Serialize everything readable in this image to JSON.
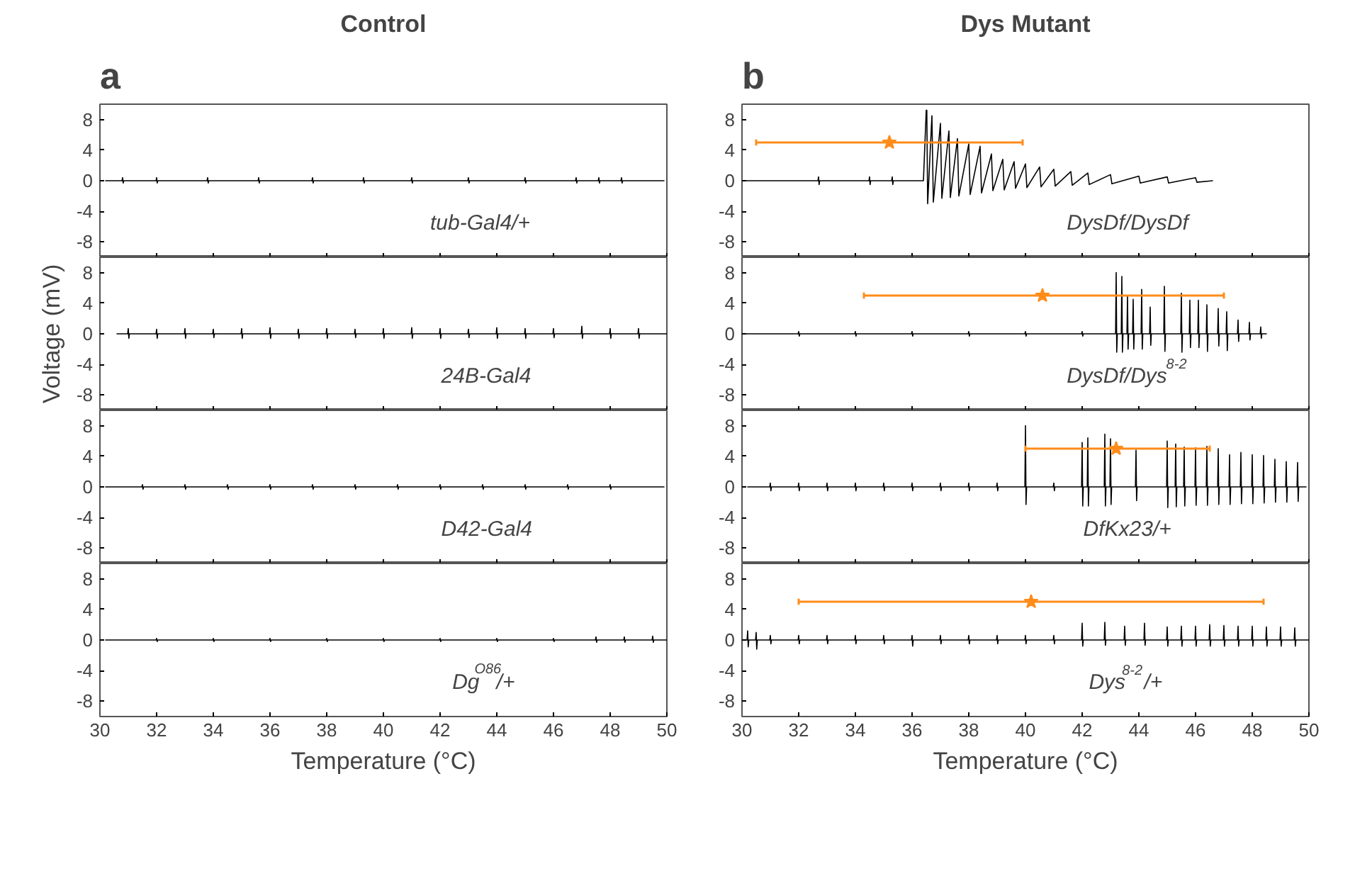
{
  "chart_data": [
    {
      "type": "line",
      "title": "Control",
      "annotations": [
        "a",
        "tub-Gal4/+"
      ],
      "xlim": [
        30,
        50
      ],
      "ylim": [
        -10,
        10
      ],
      "xticks": [
        30,
        32,
        34,
        36,
        38,
        40,
        42,
        44,
        46,
        48,
        50
      ],
      "yticks": [
        -8,
        -4,
        0,
        4,
        8
      ],
      "tick_labels": "y",
      "series": [
        {
          "color": "#000000",
          "x": [
            30.2,
            30.78,
            30.8,
            30.82,
            30.84,
            31.98,
            32,
            32.02,
            32.04,
            33.78,
            33.8,
            33.82,
            33.84,
            35.58,
            35.6,
            35.62,
            35.64,
            37.48,
            37.5,
            37.52,
            37.54,
            39.28,
            39.3,
            39.32,
            39.34,
            40.98,
            41,
            41.02,
            41.04,
            42.98,
            43,
            43.02,
            43.04,
            44.98,
            45,
            45.02,
            45.04,
            46.78,
            46.8,
            46.82,
            46.84,
            47.58,
            47.6,
            47.62,
            47.64,
            48.38,
            48.4,
            48.42,
            48.44,
            49.9
          ],
          "values": [
            0,
            0,
            0.4,
            -0.3,
            0,
            0,
            0.4,
            -0.3,
            0,
            0,
            0.4,
            -0.3,
            0,
            0,
            0.4,
            -0.3,
            0,
            0,
            0.4,
            -0.3,
            0,
            0,
            0.4,
            -0.3,
            0,
            0,
            0.4,
            -0.3,
            0,
            0,
            0.4,
            -0.3,
            0,
            0,
            0.4,
            -0.3,
            0,
            0,
            0.4,
            -0.3,
            0,
            0,
            0.4,
            -0.3,
            0,
            0,
            0.4,
            -0.3,
            0,
            0
          ]
        }
      ]
    },
    {
      "type": "line",
      "ylabel": "Voltage (mV)",
      "annotations": [
        "24B-Gal4"
      ],
      "xlim": [
        30,
        50
      ],
      "ylim": [
        -10,
        10
      ],
      "xticks": [
        30,
        32,
        34,
        36,
        38,
        40,
        42,
        44,
        46,
        48,
        50
      ],
      "yticks": [
        -8,
        -4,
        0,
        4,
        8
      ],
      "tick_labels": "y",
      "series": [
        {
          "color": "#000000",
          "x": [
            30.6,
            30.98,
            31,
            31.02,
            31.04,
            31.98,
            32,
            32.02,
            32.04,
            32.98,
            33,
            33.02,
            33.04,
            33.98,
            34,
            34.02,
            34.04,
            34.98,
            35,
            35.02,
            35.04,
            35.98,
            36,
            36.02,
            36.04,
            36.98,
            37,
            37.02,
            37.04,
            37.98,
            38,
            38.02,
            38.04,
            38.98,
            39,
            39.02,
            39.04,
            39.98,
            40,
            40.02,
            40.04,
            40.98,
            41,
            41.02,
            41.04,
            41.98,
            42,
            42.02,
            42.04,
            42.98,
            43,
            43.02,
            43.04,
            43.98,
            44,
            44.02,
            44.04,
            44.98,
            45,
            45.02,
            45.04,
            45.98,
            46,
            46.02,
            46.04,
            46.98,
            47,
            47.02,
            47.04,
            47.98,
            48,
            48.02,
            48.04,
            48.98,
            49,
            49.02,
            49.04,
            50
          ],
          "values": [
            0,
            0,
            0.7,
            -0.6,
            0,
            0,
            0.6,
            -0.6,
            0,
            0,
            0.7,
            -0.6,
            0,
            0,
            0.6,
            -0.5,
            0,
            0,
            0.7,
            -0.6,
            0,
            0,
            0.8,
            -0.6,
            0,
            0,
            0.6,
            -0.6,
            0,
            0,
            0.7,
            -0.6,
            0,
            0,
            0.6,
            -0.5,
            0,
            0,
            0.7,
            -0.6,
            0,
            0,
            0.8,
            -0.6,
            0,
            0,
            0.7,
            -0.6,
            0,
            0,
            0.6,
            -0.5,
            0,
            0,
            0.8,
            -0.6,
            0,
            0,
            0.7,
            -0.6,
            0,
            0,
            0.7,
            -0.5,
            0,
            0,
            1,
            -0.6,
            0,
            0,
            0.7,
            -0.6,
            0,
            0,
            0.7,
            -0.6,
            0,
            0
          ]
        }
      ]
    },
    {
      "type": "line",
      "annotations": [
        "D42-Gal4"
      ],
      "xlim": [
        30,
        50
      ],
      "ylim": [
        -10,
        10
      ],
      "xticks": [
        30,
        32,
        34,
        36,
        38,
        40,
        42,
        44,
        46,
        48,
        50
      ],
      "yticks": [
        -8,
        -4,
        0,
        4,
        8
      ],
      "tick_labels": "y",
      "series": [
        {
          "color": "#000000",
          "x": [
            30.2,
            31.48,
            31.5,
            31.52,
            31.54,
            32.98,
            33,
            33.02,
            33.04,
            34.48,
            34.5,
            34.52,
            34.54,
            35.98,
            36,
            36.02,
            36.04,
            37.48,
            37.5,
            37.52,
            37.54,
            38.98,
            39,
            39.02,
            39.04,
            40.48,
            40.5,
            40.52,
            40.54,
            41.98,
            42,
            42.02,
            42.04,
            43.48,
            43.5,
            43.52,
            43.54,
            44.98,
            45,
            45.02,
            45.04,
            46.48,
            46.5,
            46.52,
            46.54,
            47.98,
            48,
            48.02,
            48.04,
            49.9
          ],
          "values": [
            0,
            0,
            0.3,
            -0.3,
            0,
            0,
            0.3,
            -0.3,
            0,
            0,
            0.3,
            -0.3,
            0,
            0,
            0.3,
            -0.3,
            0,
            0,
            0.3,
            -0.3,
            0,
            0,
            0.3,
            -0.3,
            0,
            0,
            0.3,
            -0.3,
            0,
            0,
            0.3,
            -0.3,
            0,
            0,
            0.3,
            -0.3,
            0,
            0,
            0.3,
            -0.3,
            0,
            0,
            0.3,
            -0.3,
            0,
            0,
            0.3,
            -0.3,
            0,
            0
          ]
        }
      ]
    },
    {
      "type": "line",
      "xlabel": "Temperature (°C)",
      "annotations": [
        "Dg$^{O86}$/+"
      ],
      "xlim": [
        30,
        50
      ],
      "ylim": [
        -10,
        10
      ],
      "xticks": [
        30,
        32,
        34,
        36,
        38,
        40,
        42,
        44,
        46,
        48,
        50
      ],
      "yticks": [
        -8,
        -4,
        0,
        4,
        8
      ],
      "series": [
        {
          "color": "#000000",
          "x": [
            30.2,
            31.98,
            32,
            32.02,
            32.04,
            33.98,
            34,
            34.02,
            34.04,
            35.98,
            36,
            36.02,
            36.04,
            37.98,
            38,
            38.02,
            38.04,
            39.98,
            40,
            40.02,
            40.04,
            41.98,
            42,
            42.02,
            42.04,
            43.98,
            44,
            44.02,
            44.04,
            45.98,
            46,
            46.02,
            46.04,
            47.48,
            47.5,
            47.52,
            47.54,
            48.48,
            48.5,
            48.52,
            48.54,
            49.48,
            49.5,
            49.52,
            49.54,
            50
          ],
          "values": [
            0,
            0,
            0.2,
            -0.2,
            0,
            0,
            0.2,
            -0.2,
            0,
            0,
            0.2,
            -0.2,
            0,
            0,
            0.2,
            -0.2,
            0,
            0,
            0.2,
            -0.2,
            0,
            0,
            0.2,
            -0.2,
            0,
            0,
            0.2,
            -0.2,
            0,
            0,
            0.2,
            -0.2,
            0,
            0,
            0.4,
            -0.3,
            0,
            0,
            0.4,
            -0.3,
            0,
            0,
            0.5,
            -0.3,
            0,
            0
          ]
        }
      ]
    },
    {
      "type": "line",
      "title": "Dys Mutant",
      "annotations": [
        "b",
        "DysDf/DysDf"
      ],
      "xlim": [
        30,
        50
      ],
      "ylim": [
        -10,
        10
      ],
      "xticks": [
        30,
        32,
        34,
        36,
        38,
        40,
        42,
        44,
        46,
        48,
        50
      ],
      "yticks": [
        -8,
        -4,
        0,
        4,
        8
      ],
      "tick_labels": "y",
      "series": [
        {
          "color": "#000000",
          "x": [
            30,
            32.68,
            32.7,
            32.72,
            32.74,
            34.48,
            34.5,
            34.52,
            34.54,
            35.28,
            35.3,
            35.32,
            35.34,
            36.4,
            36.5,
            36.52,
            36.55,
            36.7,
            36.75,
            37,
            37.05,
            37.3,
            37.35,
            37.6,
            37.65,
            38,
            38.05,
            38.4,
            38.45,
            38.8,
            38.85,
            39.2,
            39.25,
            39.6,
            39.65,
            40,
            40.05,
            40.5,
            40.55,
            41,
            41.05,
            41.6,
            41.65,
            42.2,
            42.25,
            43,
            43.05,
            44,
            44.05,
            45,
            45.05,
            46,
            46.05,
            46.6
          ],
          "values": [
            0,
            0,
            0.5,
            -0.5,
            0,
            0,
            0.5,
            -0.5,
            0,
            0,
            0.5,
            -0.5,
            0,
            0,
            9.2,
            9.2,
            -3,
            8.5,
            -2.8,
            7.5,
            -2.3,
            6.5,
            -2.2,
            5.5,
            -2,
            4.8,
            -1.8,
            4.5,
            -1.6,
            3.5,
            -1.3,
            2.8,
            -1.2,
            2.5,
            -1,
            2.2,
            -0.9,
            1.8,
            -0.8,
            1.5,
            -0.7,
            1.2,
            -0.6,
            1,
            -0.5,
            0.8,
            -0.4,
            0.6,
            -0.3,
            0.5,
            -0.3,
            0.4,
            -0.2,
            0
          ]
        },
        {
          "type": "scatter",
          "marker": "star",
          "color": "#ff8c1a",
          "x": [
            35.2
          ],
          "values": [
            5
          ],
          "xerrors": [
            [
              30.5,
              39.9
            ]
          ]
        }
      ]
    },
    {
      "type": "line",
      "annotations": [
        "DysDf/Dys$^{8-2}$"
      ],
      "xlim": [
        30,
        50
      ],
      "ylim": [
        -10,
        10
      ],
      "xticks": [
        30,
        32,
        34,
        36,
        38,
        40,
        42,
        44,
        46,
        48,
        50
      ],
      "yticks": [
        -8,
        -4,
        0,
        4,
        8
      ],
      "tick_labels": "y",
      "series": [
        {
          "color": "#000000",
          "x": [
            30,
            31.98,
            32,
            32.02,
            32.04,
            33.98,
            34,
            34.02,
            34.04,
            35.98,
            36,
            36.02,
            36.04,
            37.98,
            38,
            38.02,
            38.04,
            39.98,
            40,
            40.02,
            40.04,
            41.98,
            42,
            42.02,
            42.04,
            43.18,
            43.2,
            43.22,
            43.24,
            43.38,
            43.4,
            43.42,
            43.44,
            43.58,
            43.6,
            43.62,
            43.64,
            43.78,
            43.8,
            43.82,
            43.84,
            44.08,
            44.1,
            44.12,
            44.14,
            44.38,
            44.4,
            44.42,
            44.44,
            44.88,
            44.9,
            44.92,
            44.94,
            45.48,
            45.5,
            45.52,
            45.54,
            45.78,
            45.8,
            45.82,
            45.84,
            46.08,
            46.1,
            46.12,
            46.14,
            46.38,
            46.4,
            46.42,
            46.44,
            46.78,
            46.8,
            46.82,
            46.84,
            47.08,
            47.1,
            47.12,
            47.14,
            47.48,
            47.5,
            47.52,
            47.54,
            47.88,
            47.9,
            47.92,
            47.94,
            48.28,
            48.3,
            48.32,
            48.34,
            48.5
          ],
          "values": [
            0,
            0,
            0.3,
            -0.3,
            0,
            0,
            0.3,
            -0.3,
            0,
            0,
            0.3,
            -0.3,
            0,
            0,
            0.3,
            -0.3,
            0,
            0,
            0.3,
            -0.3,
            0,
            0,
            0.3,
            -0.3,
            0,
            0,
            8,
            -2.4,
            0,
            0,
            7.5,
            -2.4,
            0,
            0,
            5,
            -2,
            0,
            0,
            4.5,
            -2,
            0,
            0,
            5.8,
            -2,
            0,
            0,
            3.5,
            -1.5,
            0,
            0,
            6.2,
            -2.3,
            0,
            0,
            5.3,
            -2.4,
            0,
            0,
            4.4,
            -1.8,
            0,
            0,
            4.4,
            -1.8,
            0,
            0,
            3.8,
            -2.3,
            0,
            0,
            3.3,
            -1.6,
            0,
            0,
            2.9,
            -2.2,
            0,
            0,
            1.8,
            -1,
            0,
            0,
            1.5,
            -0.8,
            0,
            0,
            0.9,
            -0.6,
            0,
            0
          ]
        },
        {
          "type": "scatter",
          "marker": "star",
          "color": "#ff8c1a",
          "x": [
            40.6
          ],
          "values": [
            5
          ],
          "xerrors": [
            [
              34.3,
              47
            ]
          ]
        }
      ]
    },
    {
      "type": "line",
      "annotations": [
        "DfKx23/+"
      ],
      "xlim": [
        30,
        50
      ],
      "ylim": [
        -10,
        10
      ],
      "xticks": [
        30,
        32,
        34,
        36,
        38,
        40,
        42,
        44,
        46,
        48,
        50
      ],
      "yticks": [
        -8,
        -4,
        0,
        4,
        8
      ],
      "tick_labels": "y",
      "series": [
        {
          "color": "#000000",
          "x": [
            30.2,
            30.98,
            31,
            31.02,
            31.04,
            31.98,
            32,
            32.02,
            32.04,
            32.98,
            33,
            33.02,
            33.04,
            33.98,
            34,
            34.02,
            34.04,
            34.98,
            35,
            35.02,
            35.04,
            35.98,
            36,
            36.02,
            36.04,
            36.98,
            37,
            37.02,
            37.04,
            37.98,
            38,
            38.02,
            38.04,
            38.98,
            39,
            39.02,
            39.04,
            39.98,
            40,
            40.02,
            40.04,
            40.98,
            41,
            41.02,
            41.04,
            41.98,
            42,
            42.02,
            42.04,
            42.18,
            42.2,
            42.22,
            42.24,
            42.78,
            42.8,
            42.82,
            42.84,
            42.98,
            43,
            43.02,
            43.04,
            43.88,
            43.9,
            43.92,
            43.94,
            44.98,
            45,
            45.02,
            45.04,
            45.28,
            45.3,
            45.32,
            45.34,
            45.58,
            45.6,
            45.62,
            45.64,
            45.98,
            46,
            46.02,
            46.04,
            46.38,
            46.4,
            46.42,
            46.44,
            46.78,
            46.8,
            46.82,
            46.84,
            47.18,
            47.2,
            47.22,
            47.24,
            47.58,
            47.6,
            47.62,
            47.64,
            47.98,
            48,
            48.02,
            48.04,
            48.38,
            48.4,
            48.42,
            48.44,
            48.78,
            48.8,
            48.82,
            48.84,
            49.18,
            49.2,
            49.22,
            49.24,
            49.58,
            49.6,
            49.62,
            49.64,
            49.9
          ],
          "values": [
            0,
            0,
            0.5,
            -0.5,
            0,
            0,
            0.5,
            -0.5,
            0,
            0,
            0.5,
            -0.5,
            0,
            0,
            0.5,
            -0.5,
            0,
            0,
            0.5,
            -0.5,
            0,
            0,
            0.5,
            -0.5,
            0,
            0,
            0.5,
            -0.5,
            0,
            0,
            0.5,
            -0.5,
            0,
            0,
            0.5,
            -0.5,
            0,
            0,
            8,
            -2.3,
            0,
            0,
            0.5,
            -0.5,
            0,
            0,
            5.8,
            -2.5,
            0,
            0,
            6.4,
            -2.5,
            0,
            0,
            6.9,
            -2.5,
            0,
            0,
            6.3,
            -2.3,
            0,
            0,
            4.8,
            -1.8,
            0,
            0,
            6,
            -2.7,
            0,
            0,
            5.6,
            -2.6,
            0,
            0,
            5.2,
            -2.5,
            0,
            0,
            5.1,
            -2.4,
            0,
            0,
            5.3,
            -2.4,
            0,
            0,
            5,
            -2.3,
            0,
            0,
            4.2,
            -2.3,
            0,
            0,
            4.5,
            -2.2,
            0,
            0,
            4.2,
            -2.2,
            0,
            0,
            4.1,
            -2.1,
            0,
            0,
            3.6,
            -2,
            0,
            0,
            3.3,
            -2,
            0,
            0,
            3.2,
            -1.9,
            0,
            0
          ]
        },
        {
          "type": "scatter",
          "marker": "star",
          "color": "#ff8c1a",
          "x": [
            43.2
          ],
          "values": [
            5
          ],
          "xerrors": [
            [
              40,
              46.5
            ]
          ]
        }
      ]
    },
    {
      "type": "line",
      "xlabel": "Temperature (°C)",
      "annotations": [
        "Dys$^{8-2}$/+"
      ],
      "xlim": [
        30,
        50
      ],
      "ylim": [
        -10,
        10
      ],
      "xticks": [
        30,
        32,
        34,
        36,
        38,
        40,
        42,
        44,
        46,
        48,
        50
      ],
      "yticks": [
        -8,
        -4,
        0,
        4,
        8
      ],
      "series": [
        {
          "color": "#000000",
          "x": [
            30,
            30.18,
            30.2,
            30.22,
            30.24,
            30.48,
            30.5,
            30.52,
            30.54,
            30.98,
            31,
            31.02,
            31.04,
            31.98,
            32,
            32.02,
            32.04,
            32.98,
            33,
            33.02,
            33.04,
            33.98,
            34,
            34.02,
            34.04,
            34.98,
            35,
            35.02,
            35.04,
            35.98,
            36,
            36.02,
            36.04,
            36.98,
            37,
            37.02,
            37.04,
            37.98,
            38,
            38.02,
            38.04,
            38.98,
            39,
            39.02,
            39.04,
            39.98,
            40,
            40.02,
            40.04,
            40.98,
            41,
            41.02,
            41.04,
            41.98,
            42,
            42.02,
            42.04,
            42.78,
            42.8,
            42.82,
            42.84,
            43.48,
            43.5,
            43.52,
            43.54,
            44.18,
            44.2,
            44.22,
            44.24,
            44.98,
            45,
            45.02,
            45.04,
            45.48,
            45.5,
            45.52,
            45.54,
            45.98,
            46,
            46.02,
            46.04,
            46.48,
            46.5,
            46.52,
            46.54,
            46.98,
            47,
            47.02,
            47.04,
            47.48,
            47.5,
            47.52,
            47.54,
            47.98,
            48,
            48.02,
            48.04,
            48.48,
            48.5,
            48.52,
            48.54,
            48.98,
            49,
            49.02,
            49.04,
            49.48,
            49.5,
            49.52,
            49.54,
            50
          ],
          "values": [
            0,
            0,
            1.2,
            -0.9,
            0,
            0,
            1,
            -1.2,
            0,
            0,
            0.6,
            -0.5,
            0,
            0,
            0.6,
            -0.5,
            0,
            0,
            0.6,
            -0.5,
            0,
            0,
            0.6,
            -0.5,
            0,
            0,
            0.6,
            -0.5,
            0,
            0,
            0.6,
            -0.8,
            0,
            0,
            0.6,
            -0.5,
            0,
            0,
            0.6,
            -0.5,
            0,
            0,
            0.6,
            -0.5,
            0,
            0,
            0.6,
            -0.5,
            0,
            0,
            0.6,
            -0.5,
            0,
            0,
            2.2,
            -0.8,
            0,
            0,
            2.3,
            -0.7,
            0,
            0,
            1.8,
            -0.7,
            0,
            0,
            2.2,
            -0.7,
            0,
            0,
            1.7,
            -0.8,
            0,
            0,
            1.8,
            -0.8,
            0,
            0,
            1.8,
            -0.8,
            0,
            0,
            2,
            -0.8,
            0,
            0,
            1.9,
            -0.8,
            0,
            0,
            1.8,
            -0.8,
            0,
            0,
            1.8,
            -0.8,
            0,
            0,
            1.7,
            -0.8,
            0,
            0,
            1.7,
            -0.8,
            0,
            0,
            1.6,
            -0.8,
            0,
            0
          ]
        },
        {
          "type": "scatter",
          "marker": "star",
          "color": "#ff8c1a",
          "x": [
            40.2
          ],
          "values": [
            5
          ],
          "xerrors": [
            [
              32,
              48.4
            ]
          ]
        }
      ]
    }
  ]
}
